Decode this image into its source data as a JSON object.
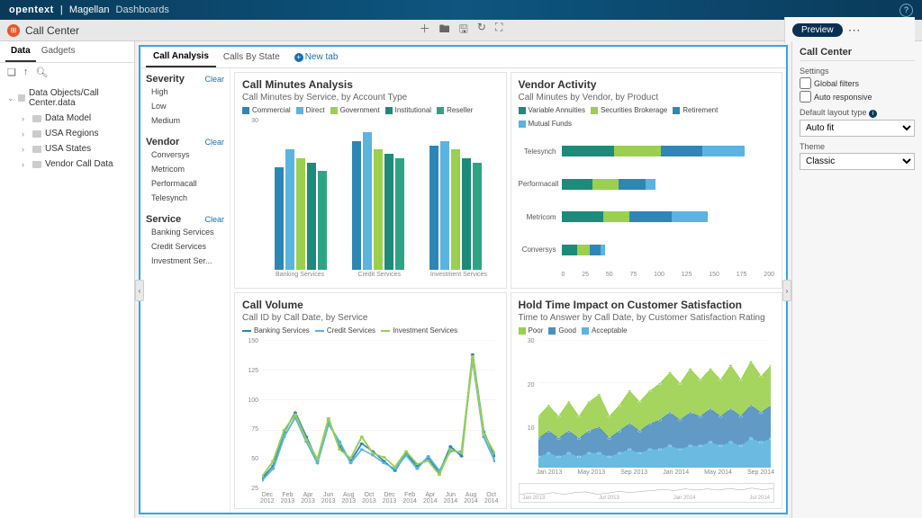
{
  "brand": {
    "name": "opentext",
    "sep": "|",
    "product": "Magellan",
    "sub": "Dashboards"
  },
  "titlebar": {
    "title": "Call Center",
    "preview": "Preview"
  },
  "colors": {
    "commercial": "#2e86b5",
    "direct": "#5bb3df",
    "government": "#9bcf4e",
    "institutional": "#1d8a7a",
    "reseller": "#2fa484",
    "variableAnnuities": "#1d8a7a",
    "securitiesBrokerage": "#9bcf4e",
    "retirement": "#2e86b5",
    "mutualFunds": "#5bb3df",
    "banking": "#2e86b5",
    "credit": "#5bb3df",
    "investment": "#9bcf4e",
    "poor": "#9bcf4e",
    "good": "#4f8fbf",
    "acceptable": "#5bb3df",
    "grid": "#e8e8e8",
    "bg": "#ffffff"
  },
  "leftPanel": {
    "tabs": [
      "Data",
      "Gadgets"
    ],
    "activeTab": 0,
    "tree": {
      "root": "Data Objects/Call Center.data",
      "children": [
        "Data Model",
        "USA Regions",
        "USA States",
        "Vendor Call Data"
      ]
    }
  },
  "centerTabs": {
    "items": [
      "Call Analysis",
      "Calls By State"
    ],
    "active": 0,
    "newTab": "New tab"
  },
  "filters": [
    {
      "title": "Severity",
      "clear": "Clear",
      "items": [
        "High",
        "Low",
        "Medium"
      ]
    },
    {
      "title": "Vendor",
      "clear": "Clear",
      "items": [
        "Conversys",
        "Metricom",
        "Performacall",
        "Telesynch"
      ]
    },
    {
      "title": "Service",
      "clear": "Clear",
      "items": [
        "Banking Services",
        "Credit Services",
        "Investment Ser..."
      ]
    }
  ],
  "charts": {
    "barGrouped": {
      "title": "Call Minutes Analysis",
      "subtitle": "Call Minutes by Service, by Account Type",
      "legend": [
        [
          "Commercial",
          "commercial"
        ],
        [
          "Direct",
          "direct"
        ],
        [
          "Government",
          "government"
        ],
        [
          "Institutional",
          "institutional"
        ],
        [
          "Reseller",
          "reseller"
        ]
      ],
      "categories": [
        "Banking Services",
        "Credit Services",
        "Investment Services"
      ],
      "yticks": [
        "30"
      ],
      "ylim": 35,
      "series": [
        [
          24,
          28,
          26,
          25,
          23
        ],
        [
          30,
          32,
          28,
          27,
          26
        ],
        [
          29,
          30,
          28,
          26,
          25
        ]
      ]
    },
    "hbar": {
      "title": "Vendor Activity",
      "subtitle": "Call Minutes by Vendor, by Product",
      "legend": [
        [
          "Variable Annuities",
          "variableAnnuities"
        ],
        [
          "Securities Brokerage",
          "securitiesBrokerage"
        ],
        [
          "Retirement",
          "retirement"
        ],
        [
          "Mutual Funds",
          "mutualFunds"
        ]
      ],
      "labels": [
        "Telesynch",
        "Performacall",
        "Metricom",
        "Conversys"
      ],
      "xticks": [
        "0",
        "25",
        "50",
        "75",
        "100",
        "125",
        "150",
        "175",
        "200"
      ],
      "xlim": 200,
      "data": [
        [
          50,
          45,
          40,
          40
        ],
        [
          30,
          25,
          25,
          10
        ],
        [
          40,
          25,
          40,
          35
        ],
        [
          15,
          12,
          10,
          5
        ]
      ]
    },
    "line": {
      "title": "Call Volume",
      "subtitle": "Call ID by Call Date, by Service",
      "legend": [
        [
          "Banking Services",
          "banking"
        ],
        [
          "Credit Services",
          "credit"
        ],
        [
          "Investment Services",
          "investment"
        ]
      ],
      "yticks": [
        "150",
        "125",
        "100",
        "75",
        "50",
        "25"
      ],
      "ylim": 155,
      "xticks": [
        "Dec 2012",
        "Feb 2013",
        "Apr 2013",
        "Jun 2013",
        "Aug 2013",
        "Oct 2013",
        "Dec 2013",
        "Feb 2014",
        "Apr 2014",
        "Jun 2014",
        "Aug 2014",
        "Oct 2014"
      ],
      "series": {
        "banking": [
          12,
          25,
          60,
          80,
          55,
          30,
          72,
          45,
          30,
          48,
          40,
          30,
          20,
          38,
          25,
          33,
          18,
          45,
          35,
          140,
          60,
          35
        ],
        "credit": [
          10,
          22,
          55,
          75,
          50,
          28,
          68,
          50,
          28,
          42,
          36,
          28,
          22,
          36,
          22,
          35,
          20,
          40,
          40,
          135,
          55,
          30
        ],
        "investment": [
          14,
          30,
          62,
          78,
          52,
          32,
          74,
          42,
          33,
          55,
          38,
          34,
          24,
          40,
          27,
          30,
          16,
          42,
          38,
          138,
          58,
          38
        ]
      }
    },
    "area": {
      "title": "Hold Time Impact on Customer Satisfaction",
      "subtitle": "Time to Answer by Call Date, by Customer Satisfaction Rating",
      "legend": [
        [
          "Poor",
          "poor"
        ],
        [
          "Good",
          "good"
        ],
        [
          "Acceptable",
          "acceptable"
        ]
      ],
      "yticks": [
        "30",
        "20",
        "10"
      ],
      "ylim": 35,
      "xticks": [
        "Jan 2013",
        "May 2013",
        "Sep 2013",
        "Jan 2014",
        "May 2014",
        "Sep 2014"
      ],
      "series": {
        "acceptable": [
          3,
          4,
          3,
          4,
          3,
          4,
          4,
          3,
          4,
          5,
          4,
          5,
          5,
          6,
          5,
          6,
          6,
          7,
          6,
          7,
          6,
          8,
          7,
          8
        ],
        "good": [
          5,
          6,
          5,
          6,
          5,
          6,
          7,
          5,
          6,
          7,
          6,
          7,
          8,
          9,
          8,
          9,
          8,
          9,
          8,
          9,
          8,
          9,
          8,
          9
        ],
        "poor": [
          6,
          7,
          6,
          8,
          6,
          8,
          9,
          6,
          7,
          9,
          8,
          9,
          10,
          11,
          10,
          12,
          10,
          11,
          10,
          12,
          10,
          12,
          10,
          11
        ]
      },
      "miniXticks": [
        "Jan 2013",
        "Jul 2013",
        "Jan 2014",
        "Jul 2014"
      ]
    }
  },
  "rightPanel": {
    "title": "Call Center",
    "settings": "Settings",
    "globalFilters": "Global filters",
    "autoResponsive": "Auto responsive",
    "layoutLabel": "Default layout type",
    "layoutValue": "Auto fit",
    "themeLabel": "Theme",
    "themeValue": "Classic"
  }
}
